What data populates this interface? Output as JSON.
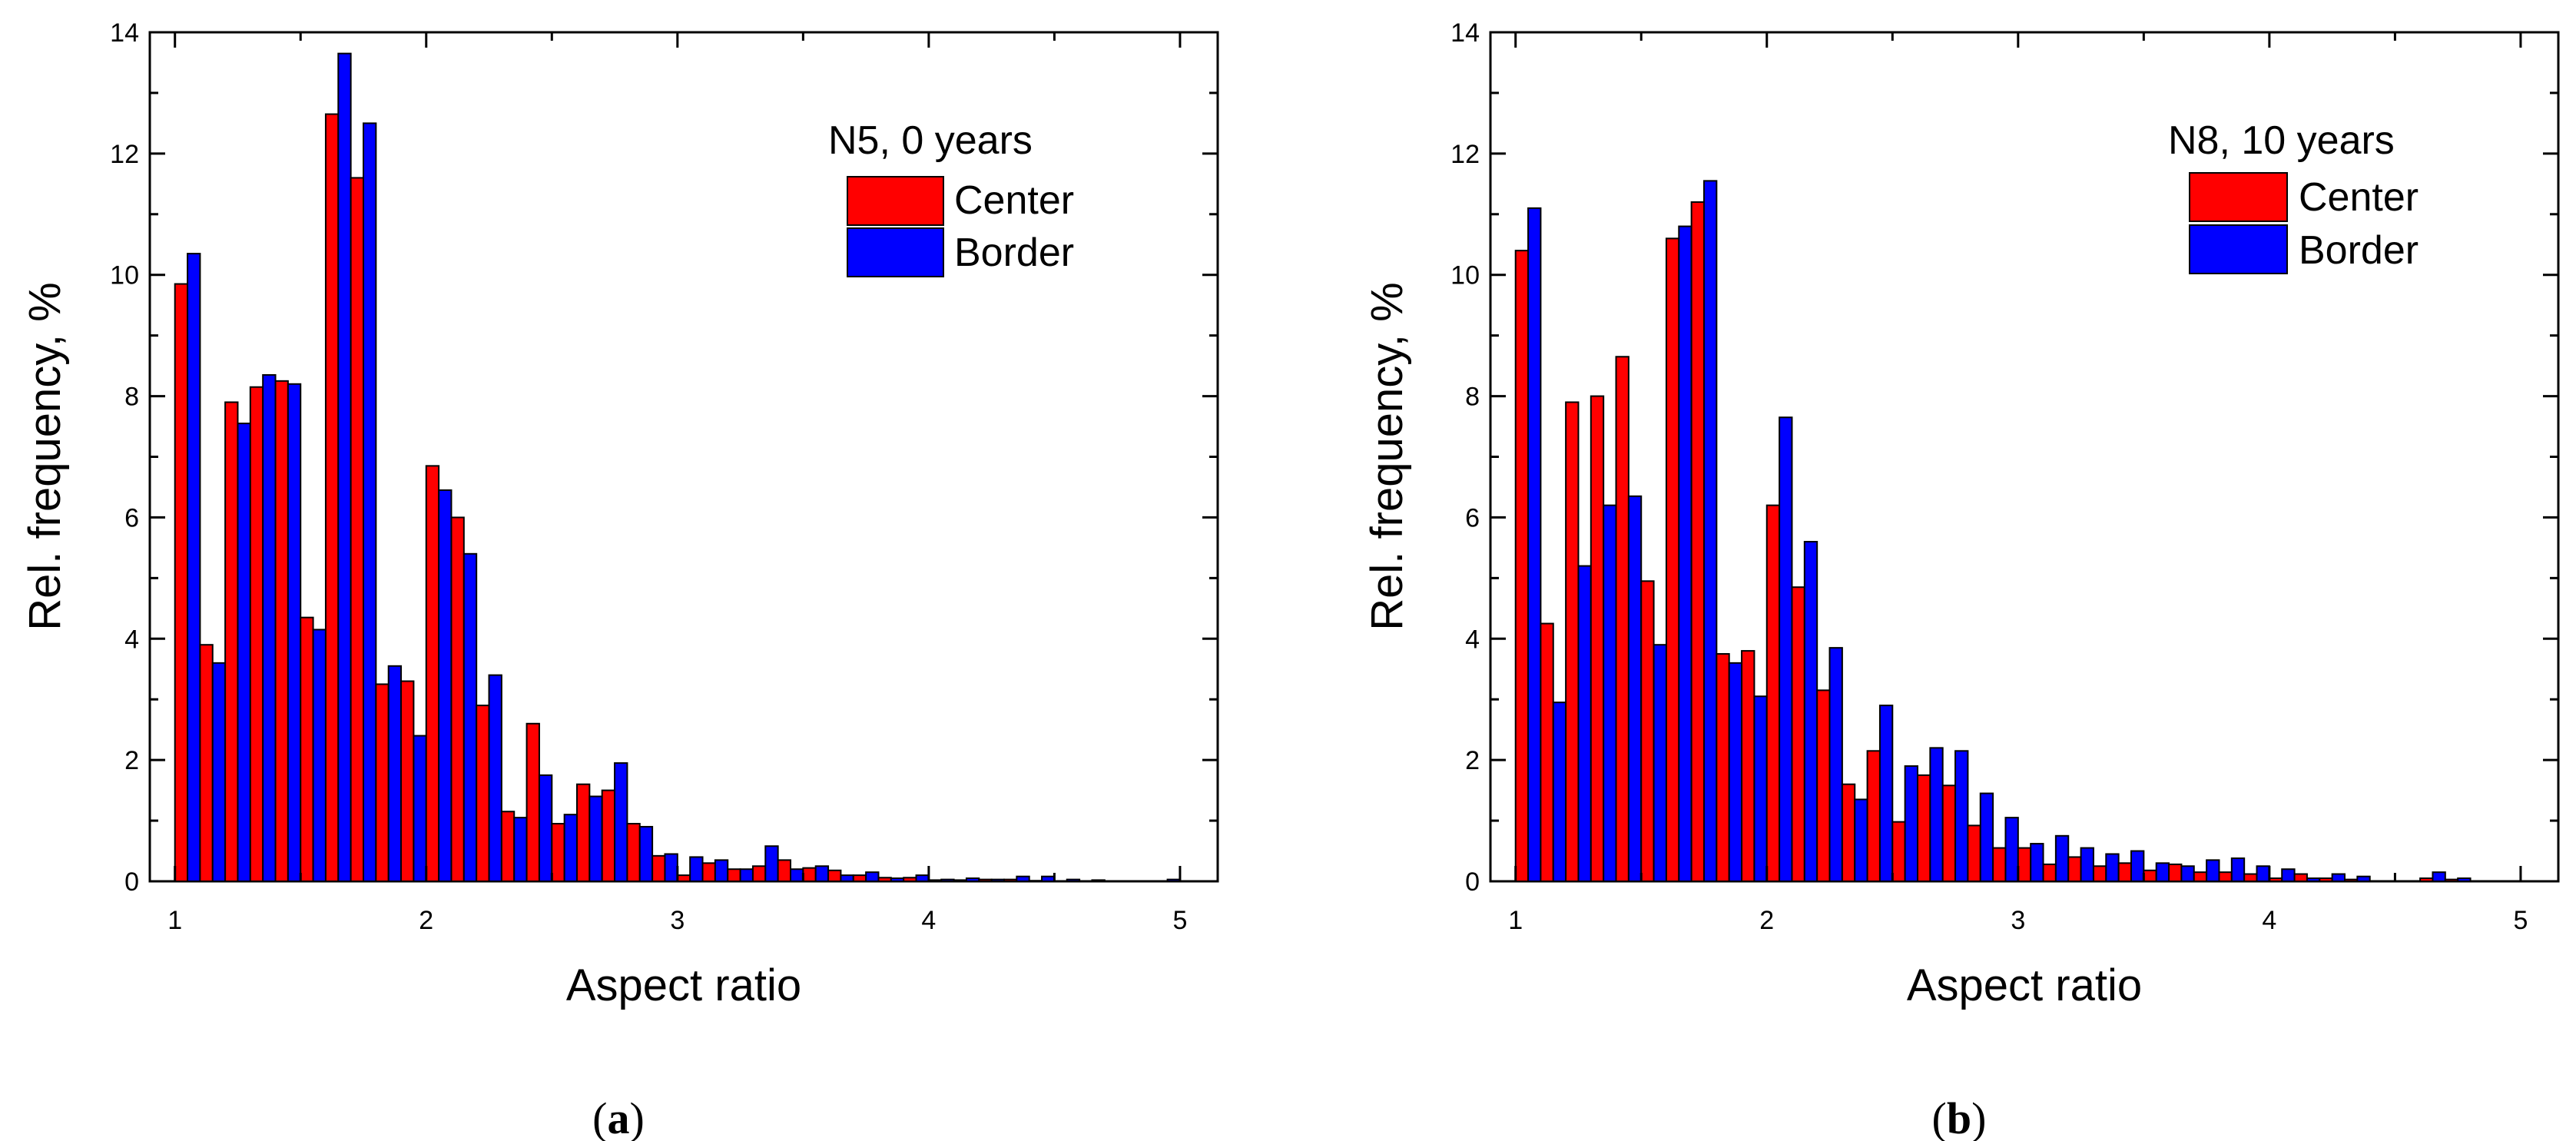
{
  "chart_data": [
    {
      "type": "bar",
      "panel_label": "a",
      "title": "",
      "xlabel": "Aspect ratio",
      "ylabel": "Rel. frequency, %",
      "xlim": [
        0.9,
        5.15
      ],
      "ylim": [
        0,
        14
      ],
      "xticks": [
        1,
        2,
        3,
        4,
        5
      ],
      "yticks": [
        0,
        2,
        4,
        6,
        8,
        10,
        12,
        14
      ],
      "bin_start": 1.0,
      "bin_width": 0.1,
      "legend": {
        "title": "N5, 0 years",
        "position": "top-right"
      },
      "grid": false,
      "series": [
        {
          "name": "Center",
          "color": "#ff0000",
          "values": [
            9.85,
            3.9,
            7.9,
            8.15,
            8.25,
            4.35,
            12.65,
            11.6,
            3.25,
            3.3,
            6.85,
            6.0,
            2.9,
            1.15,
            2.6,
            0.95,
            1.6,
            1.5,
            0.95,
            0.42,
            0.1,
            0.3,
            0.2,
            0.25,
            0.35,
            0.22,
            0.18,
            0.1,
            0.06,
            0.06,
            0.02,
            0.02,
            0.03,
            0.03,
            0.01,
            0.0,
            0.0,
            0.0,
            0.0,
            0.0
          ]
        },
        {
          "name": "Border",
          "color": "#0000ff",
          "values": [
            10.35,
            3.6,
            7.55,
            8.35,
            8.2,
            4.15,
            13.65,
            12.5,
            3.55,
            2.4,
            6.45,
            5.4,
            3.4,
            1.05,
            1.75,
            1.1,
            1.4,
            1.95,
            0.9,
            0.45,
            0.4,
            0.35,
            0.2,
            0.58,
            0.2,
            0.25,
            0.1,
            0.15,
            0.05,
            0.1,
            0.03,
            0.05,
            0.03,
            0.08,
            0.08,
            0.03,
            0.02,
            0.0,
            0.0,
            0.03
          ]
        }
      ]
    },
    {
      "type": "bar",
      "panel_label": "b",
      "title": "",
      "xlabel": "Aspect ratio",
      "ylabel": "Rel. frequency, %",
      "xlim": [
        0.9,
        5.15
      ],
      "ylim": [
        0,
        14
      ],
      "xticks": [
        1,
        2,
        3,
        4,
        5
      ],
      "yticks": [
        0,
        2,
        4,
        6,
        8,
        10,
        12,
        14
      ],
      "bin_start": 1.0,
      "bin_width": 0.1,
      "legend": {
        "title": "N8, 10 years",
        "position": "top-right"
      },
      "grid": false,
      "series": [
        {
          "name": "Center",
          "color": "#ff0000",
          "values": [
            10.4,
            4.25,
            7.9,
            8.0,
            8.65,
            4.95,
            10.6,
            11.2,
            3.75,
            3.8,
            6.2,
            4.85,
            3.15,
            1.6,
            2.15,
            0.98,
            1.75,
            1.58,
            0.92,
            0.55,
            0.55,
            0.28,
            0.4,
            0.25,
            0.3,
            0.18,
            0.28,
            0.15,
            0.15,
            0.12,
            0.05,
            0.12,
            0.05,
            0.03,
            0.0,
            0.0,
            0.05,
            0.03,
            0.0,
            0.0
          ]
        },
        {
          "name": "Border",
          "color": "#0000ff",
          "values": [
            11.1,
            2.95,
            5.2,
            6.2,
            6.35,
            3.9,
            10.8,
            11.55,
            3.6,
            3.05,
            7.65,
            5.6,
            3.85,
            1.35,
            2.9,
            1.9,
            2.2,
            2.15,
            1.45,
            1.05,
            0.62,
            0.75,
            0.55,
            0.45,
            0.5,
            0.3,
            0.25,
            0.35,
            0.38,
            0.25,
            0.2,
            0.05,
            0.12,
            0.08,
            0.0,
            0.0,
            0.15,
            0.05,
            0.0,
            0.0
          ]
        }
      ]
    }
  ]
}
